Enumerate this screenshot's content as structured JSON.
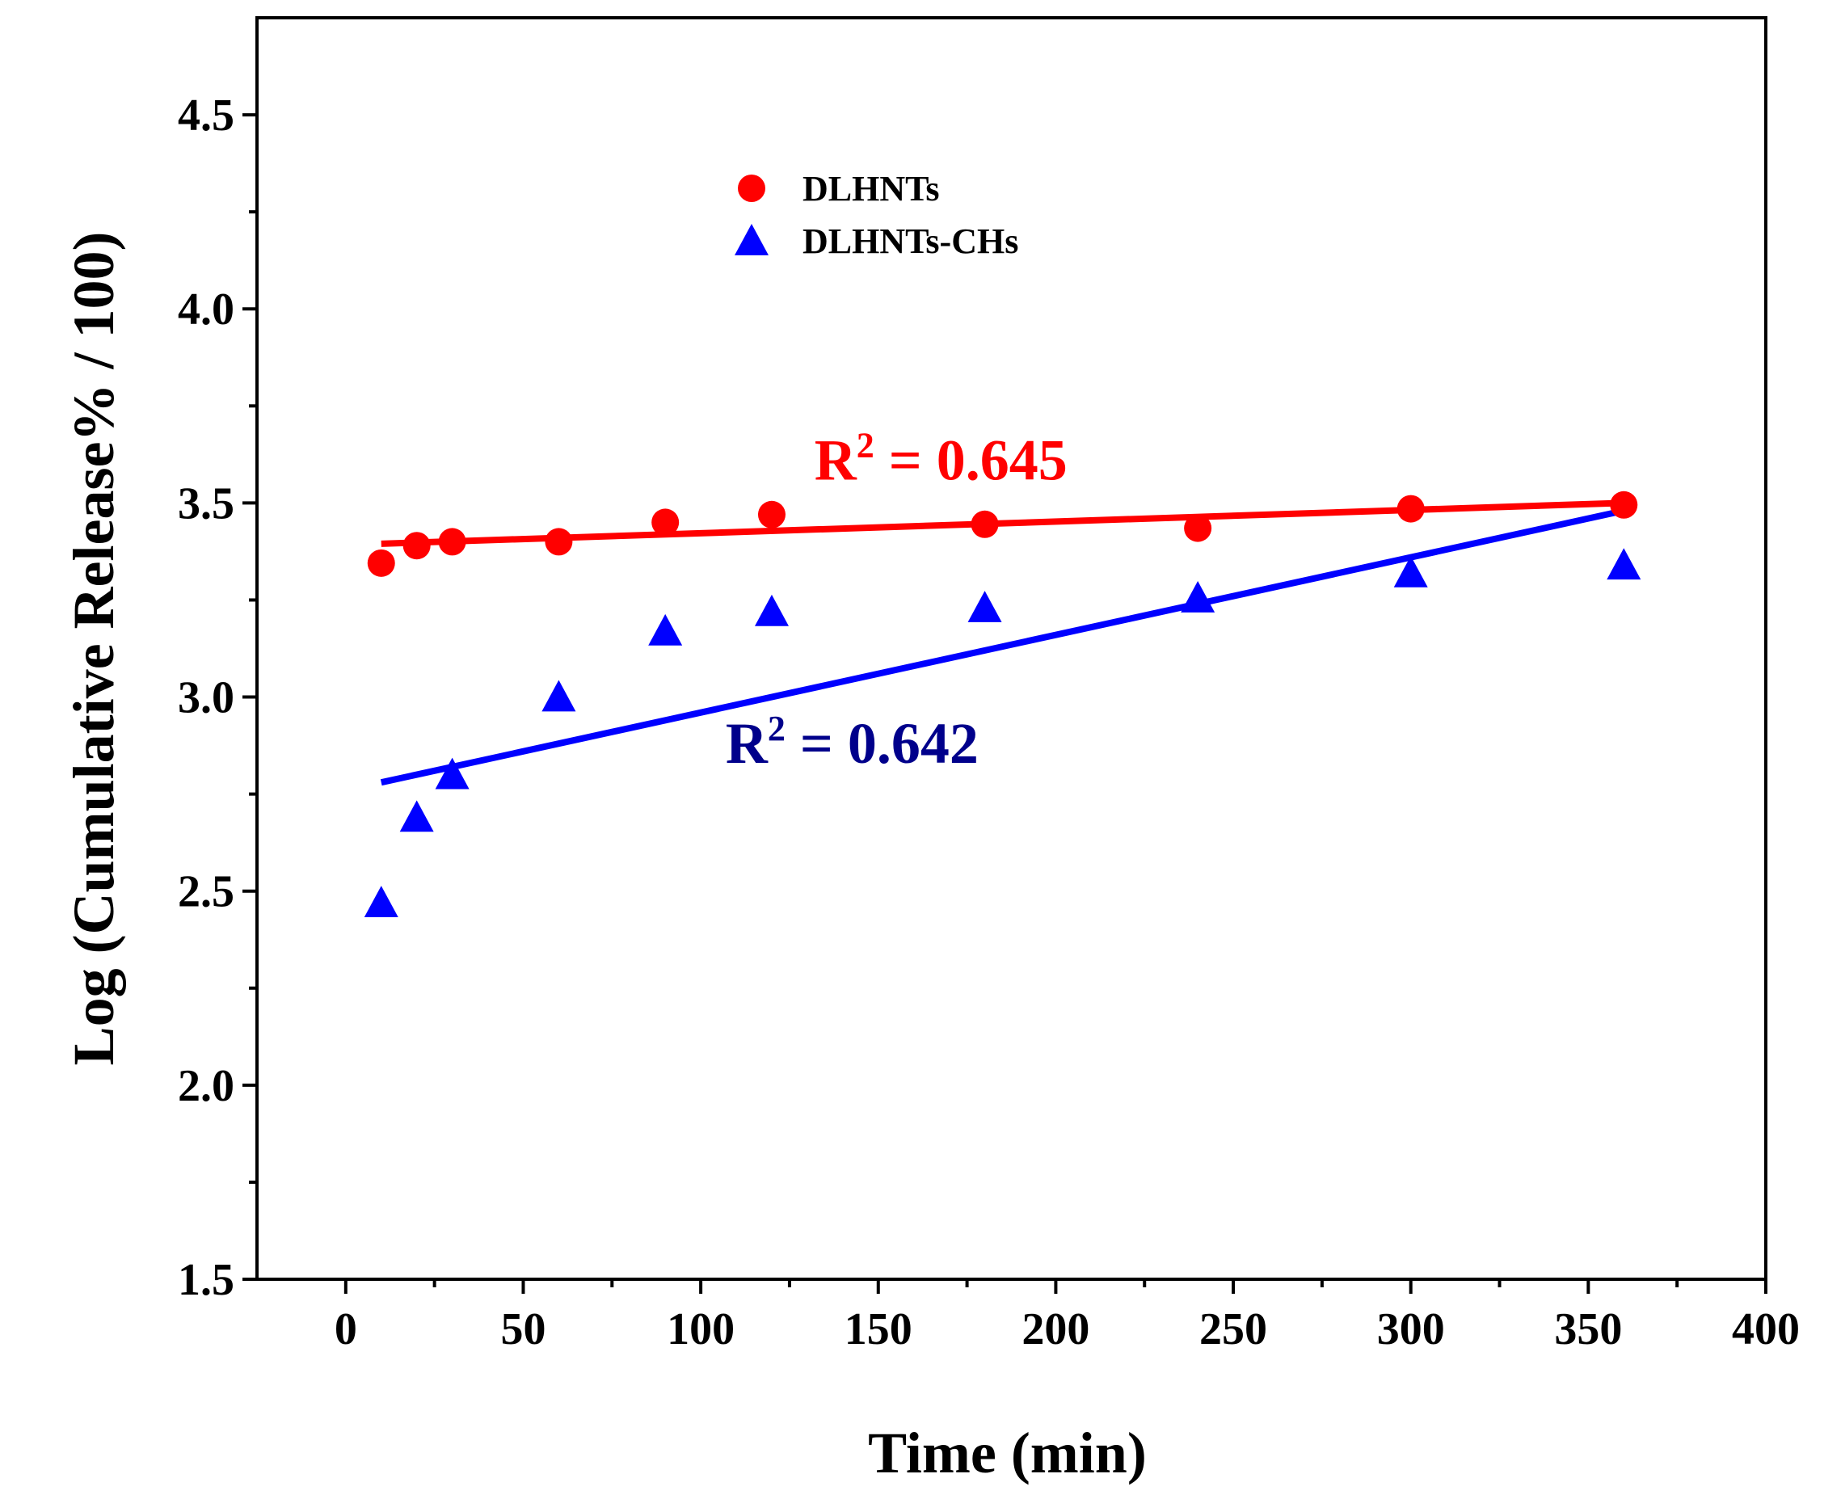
{
  "chart_data": {
    "type": "scatter",
    "title": "",
    "xlabel": "Time (min)",
    "ylabel": "Log (Cumulative Release% / 100)",
    "xlim": [
      -25,
      400
    ],
    "ylim": [
      1.5,
      4.75
    ],
    "x_ticks": [
      0,
      50,
      100,
      150,
      200,
      250,
      300,
      350,
      400
    ],
    "x_tick_labels": [
      "0",
      "50",
      "100",
      "150",
      "200",
      "250",
      "300",
      "350",
      "400"
    ],
    "y_ticks": [
      1.5,
      2.0,
      2.5,
      3.0,
      3.5,
      4.0,
      4.5
    ],
    "y_tick_labels": [
      "1.5",
      "2.0",
      "2.5",
      "3.0",
      "3.5",
      "4.0",
      "4.5"
    ],
    "grid": false,
    "legend_position": "top-center",
    "series": [
      {
        "name": "DLHNTs",
        "marker": "circle",
        "color": "#ff0000",
        "x": [
          10,
          20,
          30,
          60,
          90,
          120,
          180,
          240,
          300,
          360
        ],
        "y": [
          3.345,
          3.39,
          3.4,
          3.4,
          3.45,
          3.47,
          3.445,
          3.435,
          3.485,
          3.495
        ],
        "fit": {
          "x": [
            10,
            360
          ],
          "y": [
            3.395,
            3.5
          ],
          "color": "#ff0000"
        },
        "annotation": {
          "base": "R",
          "sup": "2",
          "rest": " = 0.645",
          "color": "#ff0000",
          "x": 132,
          "y": 3.56
        }
      },
      {
        "name": "DLHNTs-CHs",
        "marker": "triangle",
        "color": "#0000ff",
        "x": [
          10,
          20,
          30,
          60,
          90,
          120,
          180,
          240,
          300,
          360
        ],
        "y": [
          2.47,
          2.69,
          2.8,
          3.0,
          3.17,
          3.22,
          3.23,
          3.255,
          3.32,
          3.34
        ],
        "fit": {
          "x": [
            10,
            360
          ],
          "y": [
            2.78,
            3.48
          ],
          "color": "#0000ff"
        },
        "annotation": {
          "base": "R",
          "sup": "2",
          "rest": " = 0.642",
          "color": "#00008b",
          "x": 107,
          "y": 2.83
        }
      }
    ]
  }
}
